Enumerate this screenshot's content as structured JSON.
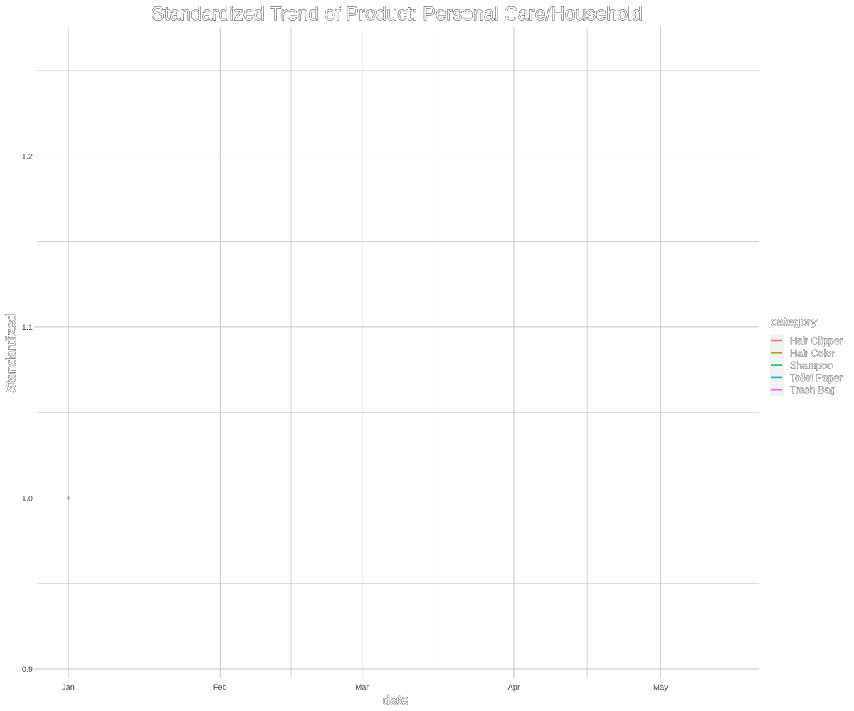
{
  "chart_data": {
    "type": "line",
    "title": "Standardized Trend of Product: Personal Care/Household",
    "xlabel": "date",
    "ylabel": "Standardized",
    "x_tick_labels": [
      "Jan",
      "Feb",
      "Mar",
      "Apr",
      "May"
    ],
    "x_range": [
      "2020-01-01",
      "2020-05-20"
    ],
    "x_ticks": [
      "2020-01-01",
      "2020-02-01",
      "2020-03-01",
      "2020-04-01",
      "2020-05-01"
    ],
    "y_tick_labels": [
      "0.9",
      "1.0",
      "1.1",
      "1.2"
    ],
    "y_ticks": [
      0.9,
      1.0,
      1.1,
      1.2
    ],
    "ylim": [
      0.9,
      1.275
    ],
    "grid": true,
    "legend": {
      "title": "category",
      "placement": "right"
    },
    "series": [
      {
        "name": "Hair Clipper",
        "color": "#F8766D",
        "points": [
          [
            "2020-01-01",
            1.0
          ]
        ]
      },
      {
        "name": "Hair Color",
        "color": "#A3A500",
        "points": [
          [
            "2020-01-01",
            1.0
          ]
        ]
      },
      {
        "name": "Shampoo",
        "color": "#00BF7D",
        "points": [
          [
            "2020-01-01",
            1.0
          ]
        ]
      },
      {
        "name": "Toilet Paper",
        "color": "#00B0F6",
        "points": [
          [
            "2020-01-01",
            1.0
          ]
        ]
      },
      {
        "name": "Trash Bag",
        "color": "#E76BF3",
        "points": [
          [
            "2020-01-01",
            1.0
          ]
        ]
      }
    ]
  }
}
